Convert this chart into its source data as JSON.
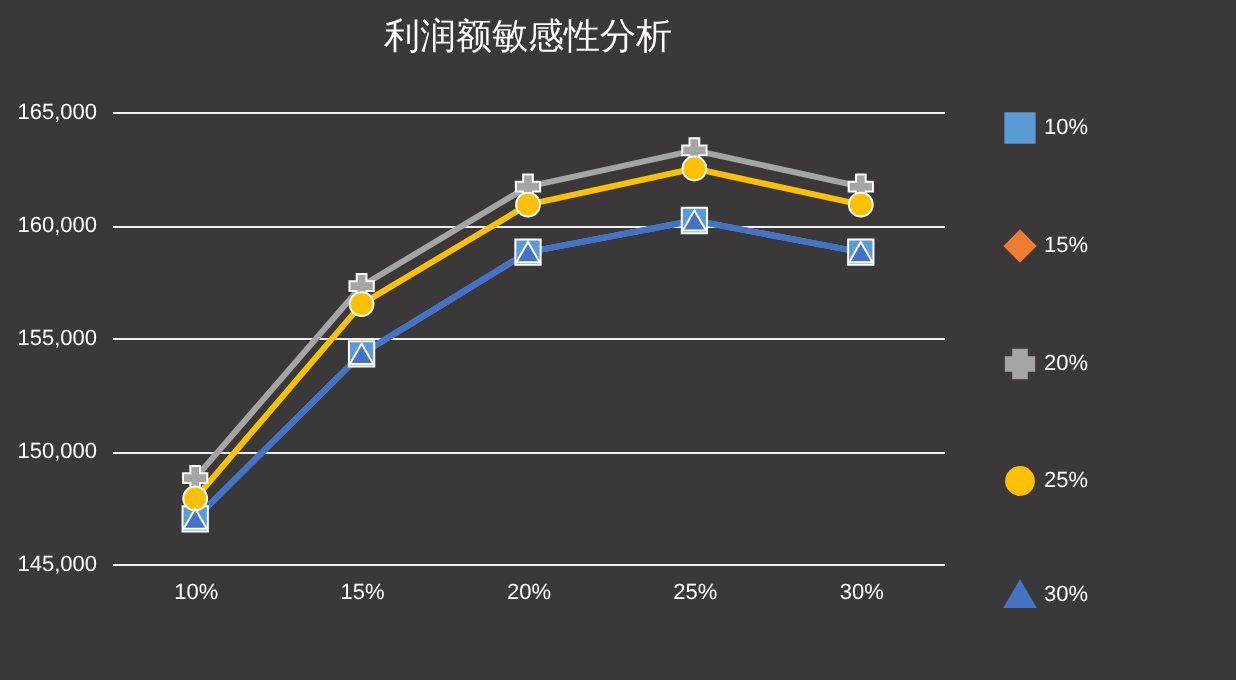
{
  "chart_data": {
    "type": "line",
    "title": "利润额敏感性分析",
    "categories": [
      "10%",
      "15%",
      "20%",
      "25%",
      "30%"
    ],
    "series": [
      {
        "name": "10%",
        "color": "#5b9bd5",
        "marker": "square",
        "values": [
          147000,
          154300,
          158800,
          160200,
          158800
        ]
      },
      {
        "name": "15%",
        "color": "#ed7d31",
        "marker": "diamond",
        "values": [
          null,
          null,
          null,
          null,
          null
        ]
      },
      {
        "name": "20%",
        "color": "#a5a5a5",
        "marker": "cross",
        "values": [
          148800,
          157300,
          161700,
          163300,
          161700
        ]
      },
      {
        "name": "25%",
        "color": "#ffc000",
        "marker": "circle",
        "values": [
          147900,
          156500,
          160900,
          162500,
          160900
        ]
      },
      {
        "name": "30%",
        "color": "#4472c4",
        "marker": "triangle",
        "values": [
          147000,
          154300,
          158800,
          160200,
          158800
        ]
      }
    ],
    "ylim": [
      145000,
      165000
    ],
    "yticks": [
      {
        "value": 145000,
        "label": "145,000"
      },
      {
        "value": 150000,
        "label": "150,000"
      },
      {
        "value": 155000,
        "label": "155,000"
      },
      {
        "value": 160000,
        "label": "160,000"
      },
      {
        "value": 165000,
        "label": "165,000"
      }
    ],
    "grid": "y",
    "legend": "right"
  }
}
